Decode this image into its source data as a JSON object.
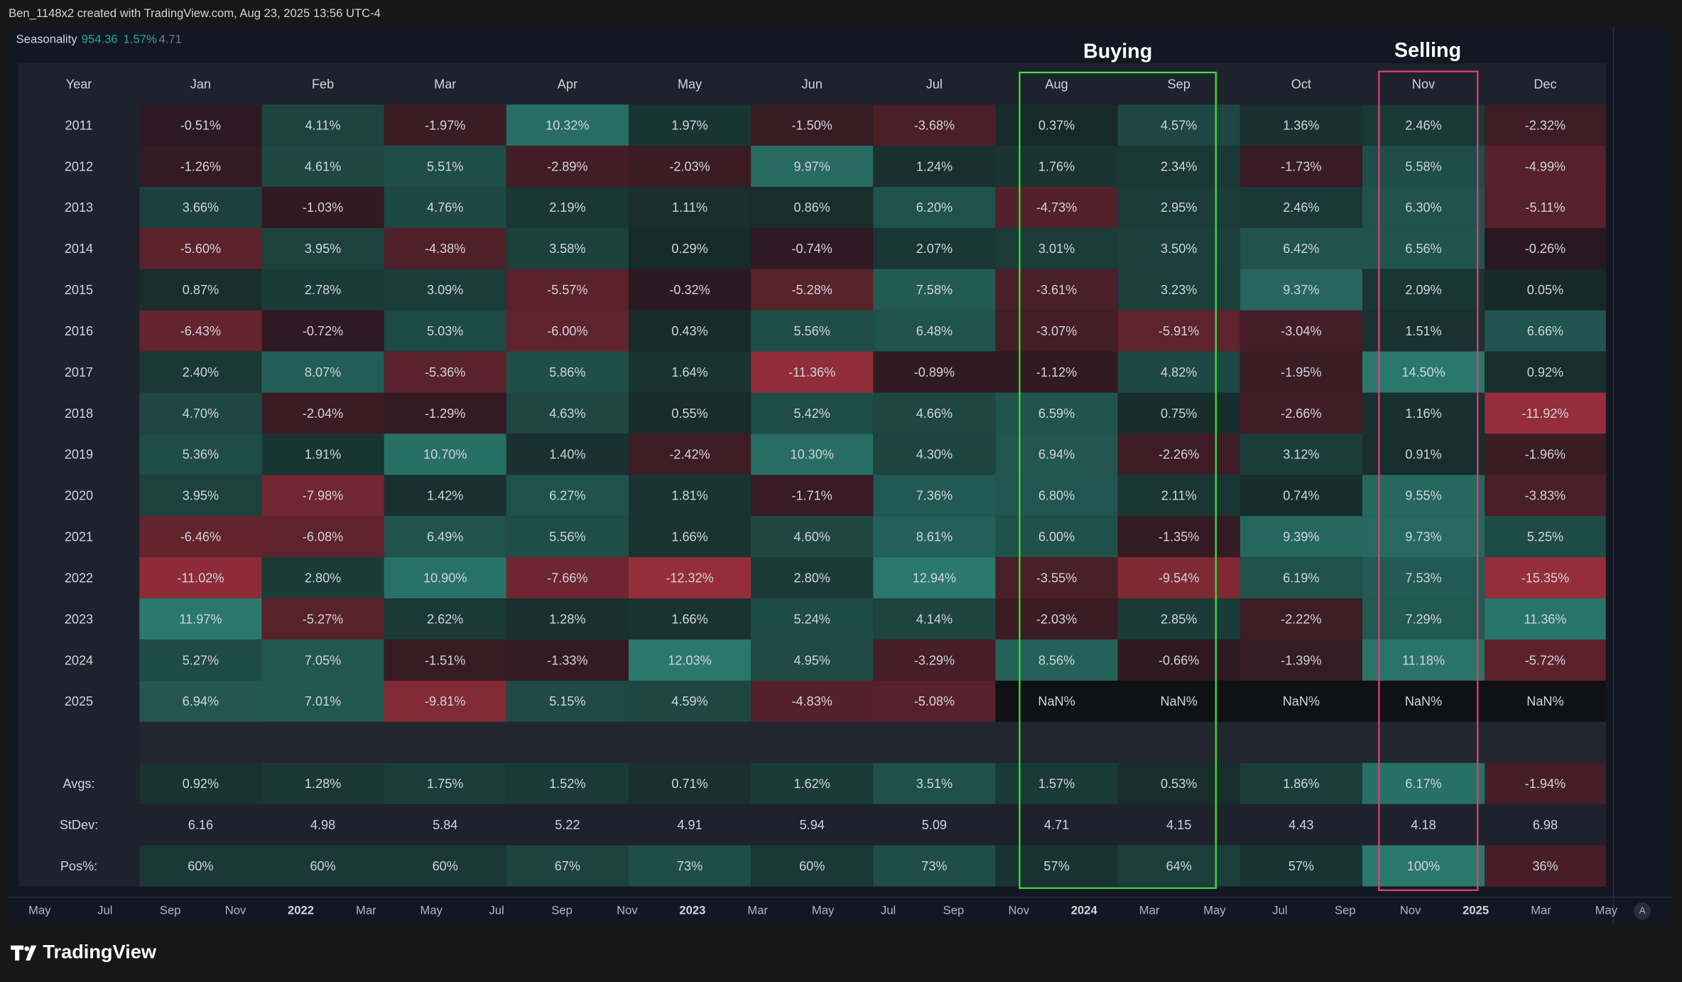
{
  "header": {
    "credit": "Ben_1148x2 created with TradingView.com, Aug 23, 2025 13:56 UTC-4"
  },
  "legend": {
    "name": "Seasonality",
    "value": "954.36",
    "change": "1.57%",
    "extra": "4.71"
  },
  "annotations": {
    "buying": "Buying",
    "selling": "Selling"
  },
  "table": {
    "header": [
      "Year",
      "Jan",
      "Feb",
      "Mar",
      "Apr",
      "May",
      "Jun",
      "Jul",
      "Aug",
      "Sep",
      "Oct",
      "Nov",
      "Dec"
    ],
    "rows": [
      [
        "2011",
        "-0.51%",
        "4.11%",
        "-1.97%",
        "10.32%",
        "1.97%",
        "-1.50%",
        "-3.68%",
        "0.37%",
        "4.57%",
        "1.36%",
        "2.46%",
        "-2.32%"
      ],
      [
        "2012",
        "-1.26%",
        "4.61%",
        "5.51%",
        "-2.89%",
        "-2.03%",
        "9.97%",
        "1.24%",
        "1.76%",
        "2.34%",
        "-1.73%",
        "5.58%",
        "-4.99%"
      ],
      [
        "2013",
        "3.66%",
        "-1.03%",
        "4.76%",
        "2.19%",
        "1.11%",
        "0.86%",
        "6.20%",
        "-4.73%",
        "2.95%",
        "2.46%",
        "6.30%",
        "-5.11%"
      ],
      [
        "2014",
        "-5.60%",
        "3.95%",
        "-4.38%",
        "3.58%",
        "0.29%",
        "-0.74%",
        "2.07%",
        "3.01%",
        "3.50%",
        "6.42%",
        "6.56%",
        "-0.26%"
      ],
      [
        "2015",
        "0.87%",
        "2.78%",
        "3.09%",
        "-5.57%",
        "-0.32%",
        "-5.28%",
        "7.58%",
        "-3.61%",
        "3.23%",
        "9.37%",
        "2.09%",
        "0.05%"
      ],
      [
        "2016",
        "-6.43%",
        "-0.72%",
        "5.03%",
        "-6.00%",
        "0.43%",
        "5.56%",
        "6.48%",
        "-3.07%",
        "-5.91%",
        "-3.04%",
        "1.51%",
        "6.66%"
      ],
      [
        "2017",
        "2.40%",
        "8.07%",
        "-5.36%",
        "5.86%",
        "1.64%",
        "-11.36%",
        "-0.89%",
        "-1.12%",
        "4.82%",
        "-1.95%",
        "14.50%",
        "0.92%"
      ],
      [
        "2018",
        "4.70%",
        "-2.04%",
        "-1.29%",
        "4.63%",
        "0.55%",
        "5.42%",
        "4.66%",
        "6.59%",
        "0.75%",
        "-2.66%",
        "1.16%",
        "-11.92%"
      ],
      [
        "2019",
        "5.36%",
        "1.91%",
        "10.70%",
        "1.40%",
        "-2.42%",
        "10.30%",
        "4.30%",
        "6.94%",
        "-2.26%",
        "3.12%",
        "0.91%",
        "-1.96%"
      ],
      [
        "2020",
        "3.95%",
        "-7.98%",
        "1.42%",
        "6.27%",
        "1.81%",
        "-1.71%",
        "7.36%",
        "6.80%",
        "2.11%",
        "0.74%",
        "9.55%",
        "-3.83%"
      ],
      [
        "2021",
        "-6.46%",
        "-6.08%",
        "6.49%",
        "5.56%",
        "1.66%",
        "4.60%",
        "8.61%",
        "6.00%",
        "-1.35%",
        "9.39%",
        "9.73%",
        "5.25%"
      ],
      [
        "2022",
        "-11.02%",
        "2.80%",
        "10.90%",
        "-7.66%",
        "-12.32%",
        "2.80%",
        "12.94%",
        "-3.55%",
        "-9.54%",
        "6.19%",
        "7.53%",
        "-15.35%"
      ],
      [
        "2023",
        "11.97%",
        "-5.27%",
        "2.62%",
        "1.28%",
        "1.66%",
        "5.24%",
        "4.14%",
        "-2.03%",
        "2.85%",
        "-2.22%",
        "7.29%",
        "11.36%"
      ],
      [
        "2024",
        "5.27%",
        "7.05%",
        "-1.51%",
        "-1.33%",
        "12.03%",
        "4.95%",
        "-3.29%",
        "8.56%",
        "-0.66%",
        "-1.39%",
        "11.18%",
        "-5.72%"
      ],
      [
        "2025",
        "6.94%",
        "7.01%",
        "-9.81%",
        "5.15%",
        "4.59%",
        "-4.83%",
        "-5.08%",
        "NaN%",
        "NaN%",
        "NaN%",
        "NaN%",
        "NaN%"
      ]
    ],
    "summary": [
      [
        "Avgs:",
        "0.92%",
        "1.28%",
        "1.75%",
        "1.52%",
        "0.71%",
        "1.62%",
        "3.51%",
        "1.57%",
        "0.53%",
        "1.86%",
        "6.17%",
        "-1.94%"
      ],
      [
        "StDev:",
        "6.16",
        "4.98",
        "5.84",
        "5.22",
        "4.91",
        "5.94",
        "5.09",
        "4.71",
        "4.15",
        "4.43",
        "4.18",
        "6.98"
      ],
      [
        "Pos%:",
        "60%",
        "60%",
        "60%",
        "67%",
        "73%",
        "60%",
        "73%",
        "57%",
        "64%",
        "57%",
        "100%",
        "36%"
      ]
    ]
  },
  "time_axis": [
    "May",
    "Jul",
    "Sep",
    "Nov",
    "2022",
    "Mar",
    "May",
    "Jul",
    "Sep",
    "Nov",
    "2023",
    "Mar",
    "May",
    "Jul",
    "Sep",
    "Nov",
    "2024",
    "Mar",
    "May",
    "Jul",
    "Sep",
    "Nov",
    "2025",
    "Mar",
    "May"
  ],
  "scale_button": "A",
  "logo": "TradingView"
}
